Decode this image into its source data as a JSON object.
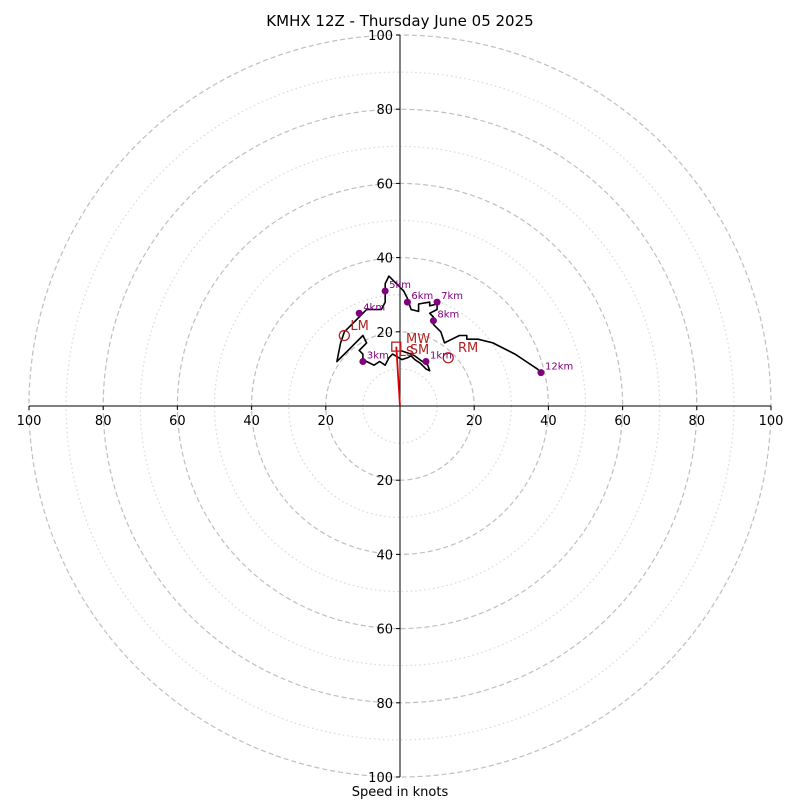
{
  "chart_data": {
    "type": "line",
    "title": "KMHX 12Z - Thursday June 05 2025",
    "xlabel": "Speed in knots",
    "xlim": [
      -100,
      100
    ],
    "ylim": [
      -100,
      100
    ],
    "grid": true,
    "tick_labels": [
      "100",
      "80",
      "60",
      "40",
      "20",
      "20",
      "40",
      "60",
      "80",
      "100"
    ],
    "hodograph": {
      "name": "hodograph",
      "points": [
        [
          0,
          15
        ],
        [
          1.5,
          14.5
        ],
        [
          3,
          14
        ],
        [
          4,
          13.5
        ],
        [
          6,
          12
        ],
        [
          7.5,
          11
        ],
        [
          8,
          9.5
        ],
        [
          7,
          10
        ],
        [
          5.5,
          11.5
        ],
        [
          4,
          12.5
        ],
        [
          3,
          13.5
        ],
        [
          2,
          13
        ],
        [
          0.5,
          12.5
        ],
        [
          -2,
          14
        ],
        [
          -3,
          13
        ],
        [
          -4,
          11
        ],
        [
          -5.5,
          12
        ],
        [
          -7,
          11
        ],
        [
          -9,
          12
        ],
        [
          -10,
          12.5
        ],
        [
          -10,
          14
        ],
        [
          -11,
          15
        ],
        [
          -9,
          17
        ],
        [
          -10,
          19
        ],
        [
          -12,
          17
        ],
        [
          -14,
          15
        ],
        [
          -17,
          12
        ],
        [
          -16,
          17
        ],
        [
          -15,
          20
        ],
        [
          -13,
          22
        ],
        [
          -11,
          24
        ],
        [
          -9,
          26
        ],
        [
          -5,
          26
        ],
        [
          -4,
          28
        ],
        [
          -4,
          30
        ],
        [
          -4,
          33
        ],
        [
          -3,
          35
        ],
        [
          -1,
          33
        ],
        [
          1,
          31
        ],
        [
          2,
          29
        ],
        [
          3,
          26
        ],
        [
          5,
          25.5
        ],
        [
          5,
          27.5
        ],
        [
          8,
          28
        ],
        [
          8,
          27
        ],
        [
          10,
          27.5
        ],
        [
          10,
          26
        ],
        [
          8,
          25
        ],
        [
          9,
          24
        ],
        [
          9,
          23
        ],
        [
          9,
          22
        ],
        [
          11,
          20
        ],
        [
          12,
          17
        ],
        [
          14,
          18
        ],
        [
          16,
          19
        ],
        [
          18,
          19
        ],
        [
          18,
          18
        ],
        [
          19,
          18
        ],
        [
          21,
          18
        ],
        [
          25,
          17
        ],
        [
          31,
          14
        ],
        [
          34,
          12
        ],
        [
          37,
          10
        ],
        [
          38,
          9
        ]
      ]
    },
    "height_markers": [
      {
        "label": "1km",
        "x": 7,
        "y": 12
      },
      {
        "label": "3km",
        "x": -10,
        "y": 12
      },
      {
        "label": "4km",
        "x": -11,
        "y": 25
      },
      {
        "label": "5km",
        "x": -4,
        "y": 31
      },
      {
        "label": "6km",
        "x": 2,
        "y": 28
      },
      {
        "label": "7km",
        "x": 10,
        "y": 28
      },
      {
        "label": "8km",
        "x": 9,
        "y": 23
      },
      {
        "label": "12km",
        "x": 38,
        "y": 9
      }
    ],
    "storm_motion": {
      "color": "#b22222",
      "markers": [
        {
          "label": "LM",
          "shape": "circle",
          "x": -15,
          "y": 19
        },
        {
          "label": "RM",
          "shape": "circle",
          "x": 13,
          "y": 13
        },
        {
          "label": "MW",
          "shape": "square",
          "x": -1,
          "y": 16
        }
      ],
      "texts": [
        {
          "label": "LM",
          "x": -15,
          "y": 20
        },
        {
          "label": "RM",
          "x": 14,
          "y": 14
        },
        {
          "label": "MW",
          "x": 0,
          "y": 16.5
        },
        {
          "label": "SM",
          "x": 1,
          "y": 13.5
        },
        {
          "label": "LS",
          "x": -2,
          "y": 13
        }
      ]
    },
    "shear_vector": {
      "color": "#e00000",
      "from": [
        0,
        0
      ],
      "to": [
        -1,
        16
      ]
    },
    "colors": {
      "hodograph": "#000000",
      "height_marker": "#800080",
      "grid_major": "#bfbfbf",
      "grid_minor": "#d9d9d9",
      "axis": "#000000"
    }
  }
}
